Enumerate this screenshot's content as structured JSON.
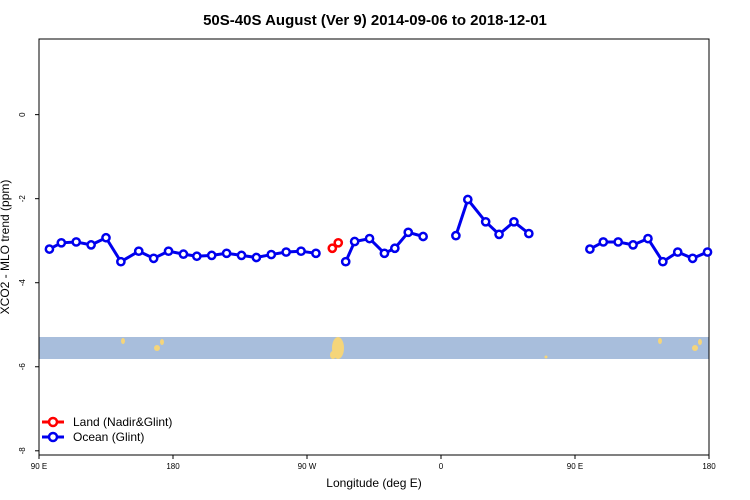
{
  "chart_data": {
    "type": "line",
    "title": "50S-40S August (Ver 9)   2014-09-06 to 2018-12-01",
    "xlabel": "Longitude (deg E)",
    "ylabel": "XCO2 - MLO trend (ppm)",
    "xlim": [
      90,
      540
    ],
    "ylim": [
      -8.1,
      1.8
    ],
    "x_ticks": [
      {
        "value": 90,
        "label": "90 E"
      },
      {
        "value": 180,
        "label": "180"
      },
      {
        "value": 270,
        "label": "90 W"
      },
      {
        "value": 360,
        "label": "0"
      },
      {
        "value": 450,
        "label": "90 E"
      },
      {
        "value": 540,
        "label": "180"
      }
    ],
    "y_ticks": [
      {
        "value": 0,
        "label": "0"
      },
      {
        "value": -2,
        "label": "-2"
      },
      {
        "value": -4,
        "label": "-4"
      },
      {
        "value": -6,
        "label": "-6"
      },
      {
        "value": -8,
        "label": "-8"
      }
    ],
    "grid": false,
    "legend_position": "bottom-left",
    "map_strip": {
      "y_range": [
        -5.95,
        -5.4
      ],
      "ocean_color": "#a8bedc",
      "land_color": "#f5d57a"
    },
    "series": [
      {
        "name": "Land (Nadir&Glint)",
        "color": "#ff0000",
        "segments": [
          [
            [
              287,
              -3.18
            ],
            [
              291,
              -3.05
            ]
          ]
        ]
      },
      {
        "name": "Ocean (Glint)",
        "color": "#0000ee",
        "segments": [
          [
            [
              97,
              -3.2
            ],
            [
              105,
              -3.05
            ],
            [
              115,
              -3.03
            ],
            [
              125,
              -3.1
            ],
            [
              135,
              -2.93
            ],
            [
              145,
              -3.5
            ],
            [
              157,
              -3.25
            ],
            [
              167,
              -3.42
            ],
            [
              177,
              -3.25
            ],
            [
              187,
              -3.32
            ],
            [
              196,
              -3.37
            ],
            [
              206,
              -3.35
            ],
            [
              216,
              -3.3
            ],
            [
              226,
              -3.35
            ],
            [
              236,
              -3.4
            ],
            [
              246,
              -3.33
            ],
            [
              256,
              -3.27
            ],
            [
              266,
              -3.25
            ],
            [
              276,
              -3.3
            ]
          ],
          [
            [
              296,
              -3.5
            ],
            [
              302,
              -3.02
            ],
            [
              312,
              -2.95
            ],
            [
              322,
              -3.3
            ],
            [
              329,
              -3.18
            ],
            [
              338,
              -2.8
            ],
            [
              348,
              -2.9
            ]
          ],
          [
            [
              370,
              -2.88
            ],
            [
              378,
              -2.02
            ],
            [
              390,
              -2.55
            ],
            [
              399,
              -2.85
            ],
            [
              409,
              -2.55
            ],
            [
              419,
              -2.83
            ]
          ],
          [
            [
              460,
              -3.2
            ],
            [
              469,
              -3.03
            ],
            [
              479,
              -3.03
            ],
            [
              489,
              -3.1
            ],
            [
              499,
              -2.95
            ],
            [
              509,
              -3.5
            ],
            [
              519,
              -3.27
            ],
            [
              529,
              -3.42
            ],
            [
              539,
              -3.27
            ]
          ]
        ]
      }
    ]
  }
}
